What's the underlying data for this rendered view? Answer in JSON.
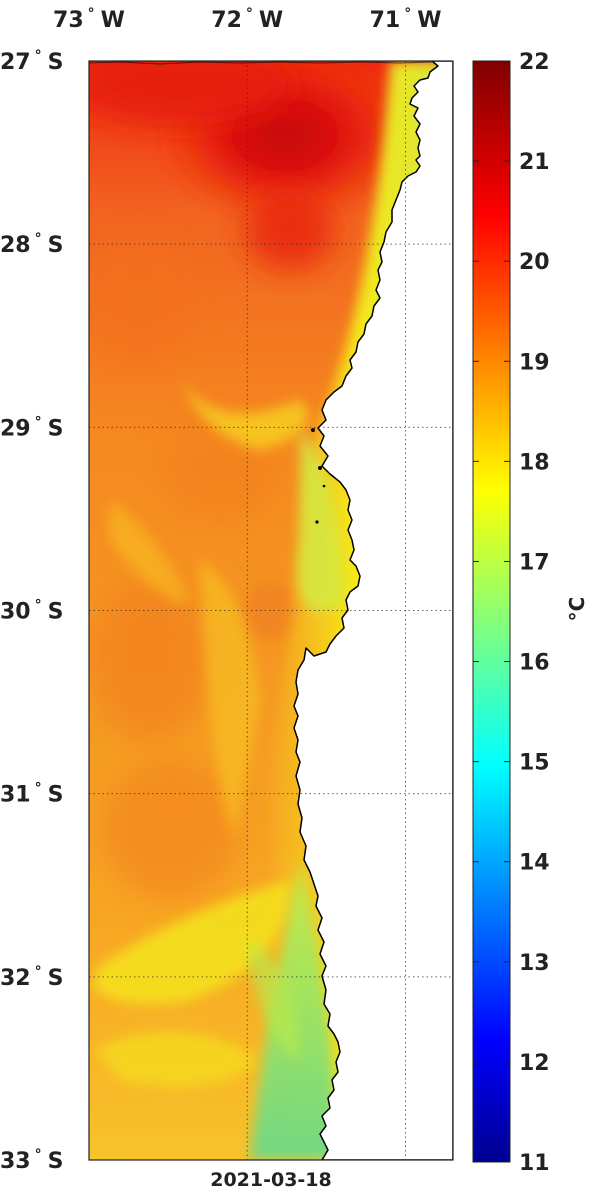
{
  "map": {
    "variable_unit": "°C",
    "date": "2021-03-18",
    "lon_labels": [
      {
        "deg": "73",
        "hem": "W",
        "value": -73
      },
      {
        "deg": "72",
        "hem": "W",
        "value": -72
      },
      {
        "deg": "71",
        "hem": "W",
        "value": -71
      }
    ],
    "lat_labels": [
      {
        "deg": "27",
        "hem": "S",
        "value": -27
      },
      {
        "deg": "28",
        "hem": "S",
        "value": -28
      },
      {
        "deg": "29",
        "hem": "S",
        "value": -29
      },
      {
        "deg": "30",
        "hem": "S",
        "value": -30
      },
      {
        "deg": "31",
        "hem": "S",
        "value": -31
      },
      {
        "deg": "32",
        "hem": "S",
        "value": -32
      },
      {
        "deg": "33",
        "hem": "S",
        "value": -33
      }
    ],
    "lon_range": [
      -73.0,
      -70.7
    ],
    "lat_range": [
      -33.0,
      -27.0
    ],
    "grid": "dotted",
    "colorbar": {
      "min": 11,
      "max": 22,
      "ticks": [
        "22",
        "21",
        "20",
        "19",
        "18",
        "17",
        "16",
        "15",
        "14",
        "13",
        "12",
        "11"
      ],
      "colormap": "jet"
    },
    "colors": {
      "land": "#ffffff",
      "coast": "#000000",
      "warm_core": "#d81008",
      "cool_coast": "#8de070"
    }
  }
}
